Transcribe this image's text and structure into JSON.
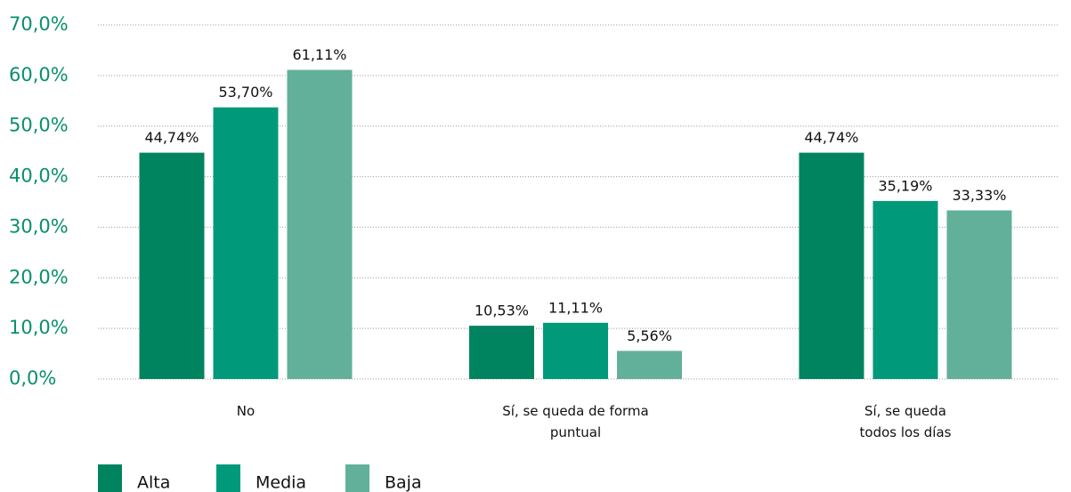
{
  "chart_data": {
    "type": "bar",
    "categories": [
      "No",
      "Sí, se queda de forma\npuntual",
      "Sí, se queda\ntodos los días"
    ],
    "series": [
      {
        "name": "Alta",
        "color": "#00845f",
        "values": [
          44.74,
          10.53,
          44.74
        ],
        "value_labels": [
          "44,74%",
          "10,53%",
          "44,74%"
        ]
      },
      {
        "name": "Media",
        "color": "#009a7b",
        "values": [
          53.7,
          11.11,
          35.19
        ],
        "value_labels": [
          "53,70%",
          "11,11%",
          "35,19%"
        ]
      },
      {
        "name": "Baja",
        "color": "#62b09a",
        "values": [
          61.11,
          5.56,
          33.33
        ],
        "value_labels": [
          "61,11%",
          "5,56%",
          "33,33%"
        ]
      }
    ],
    "ylim": [
      0,
      70
    ],
    "yticks": [
      {
        "value": 0,
        "label": "0,0%"
      },
      {
        "value": 10,
        "label": "10,0%"
      },
      {
        "value": 20,
        "label": "20,0%"
      },
      {
        "value": 30,
        "label": "30,0%"
      },
      {
        "value": 40,
        "label": "40,0%"
      },
      {
        "value": 50,
        "label": "50,0%"
      },
      {
        "value": 60,
        "label": "60,0%"
      },
      {
        "value": 70,
        "label": "70,0%"
      }
    ],
    "grid": true,
    "legend": "bottom-left"
  }
}
